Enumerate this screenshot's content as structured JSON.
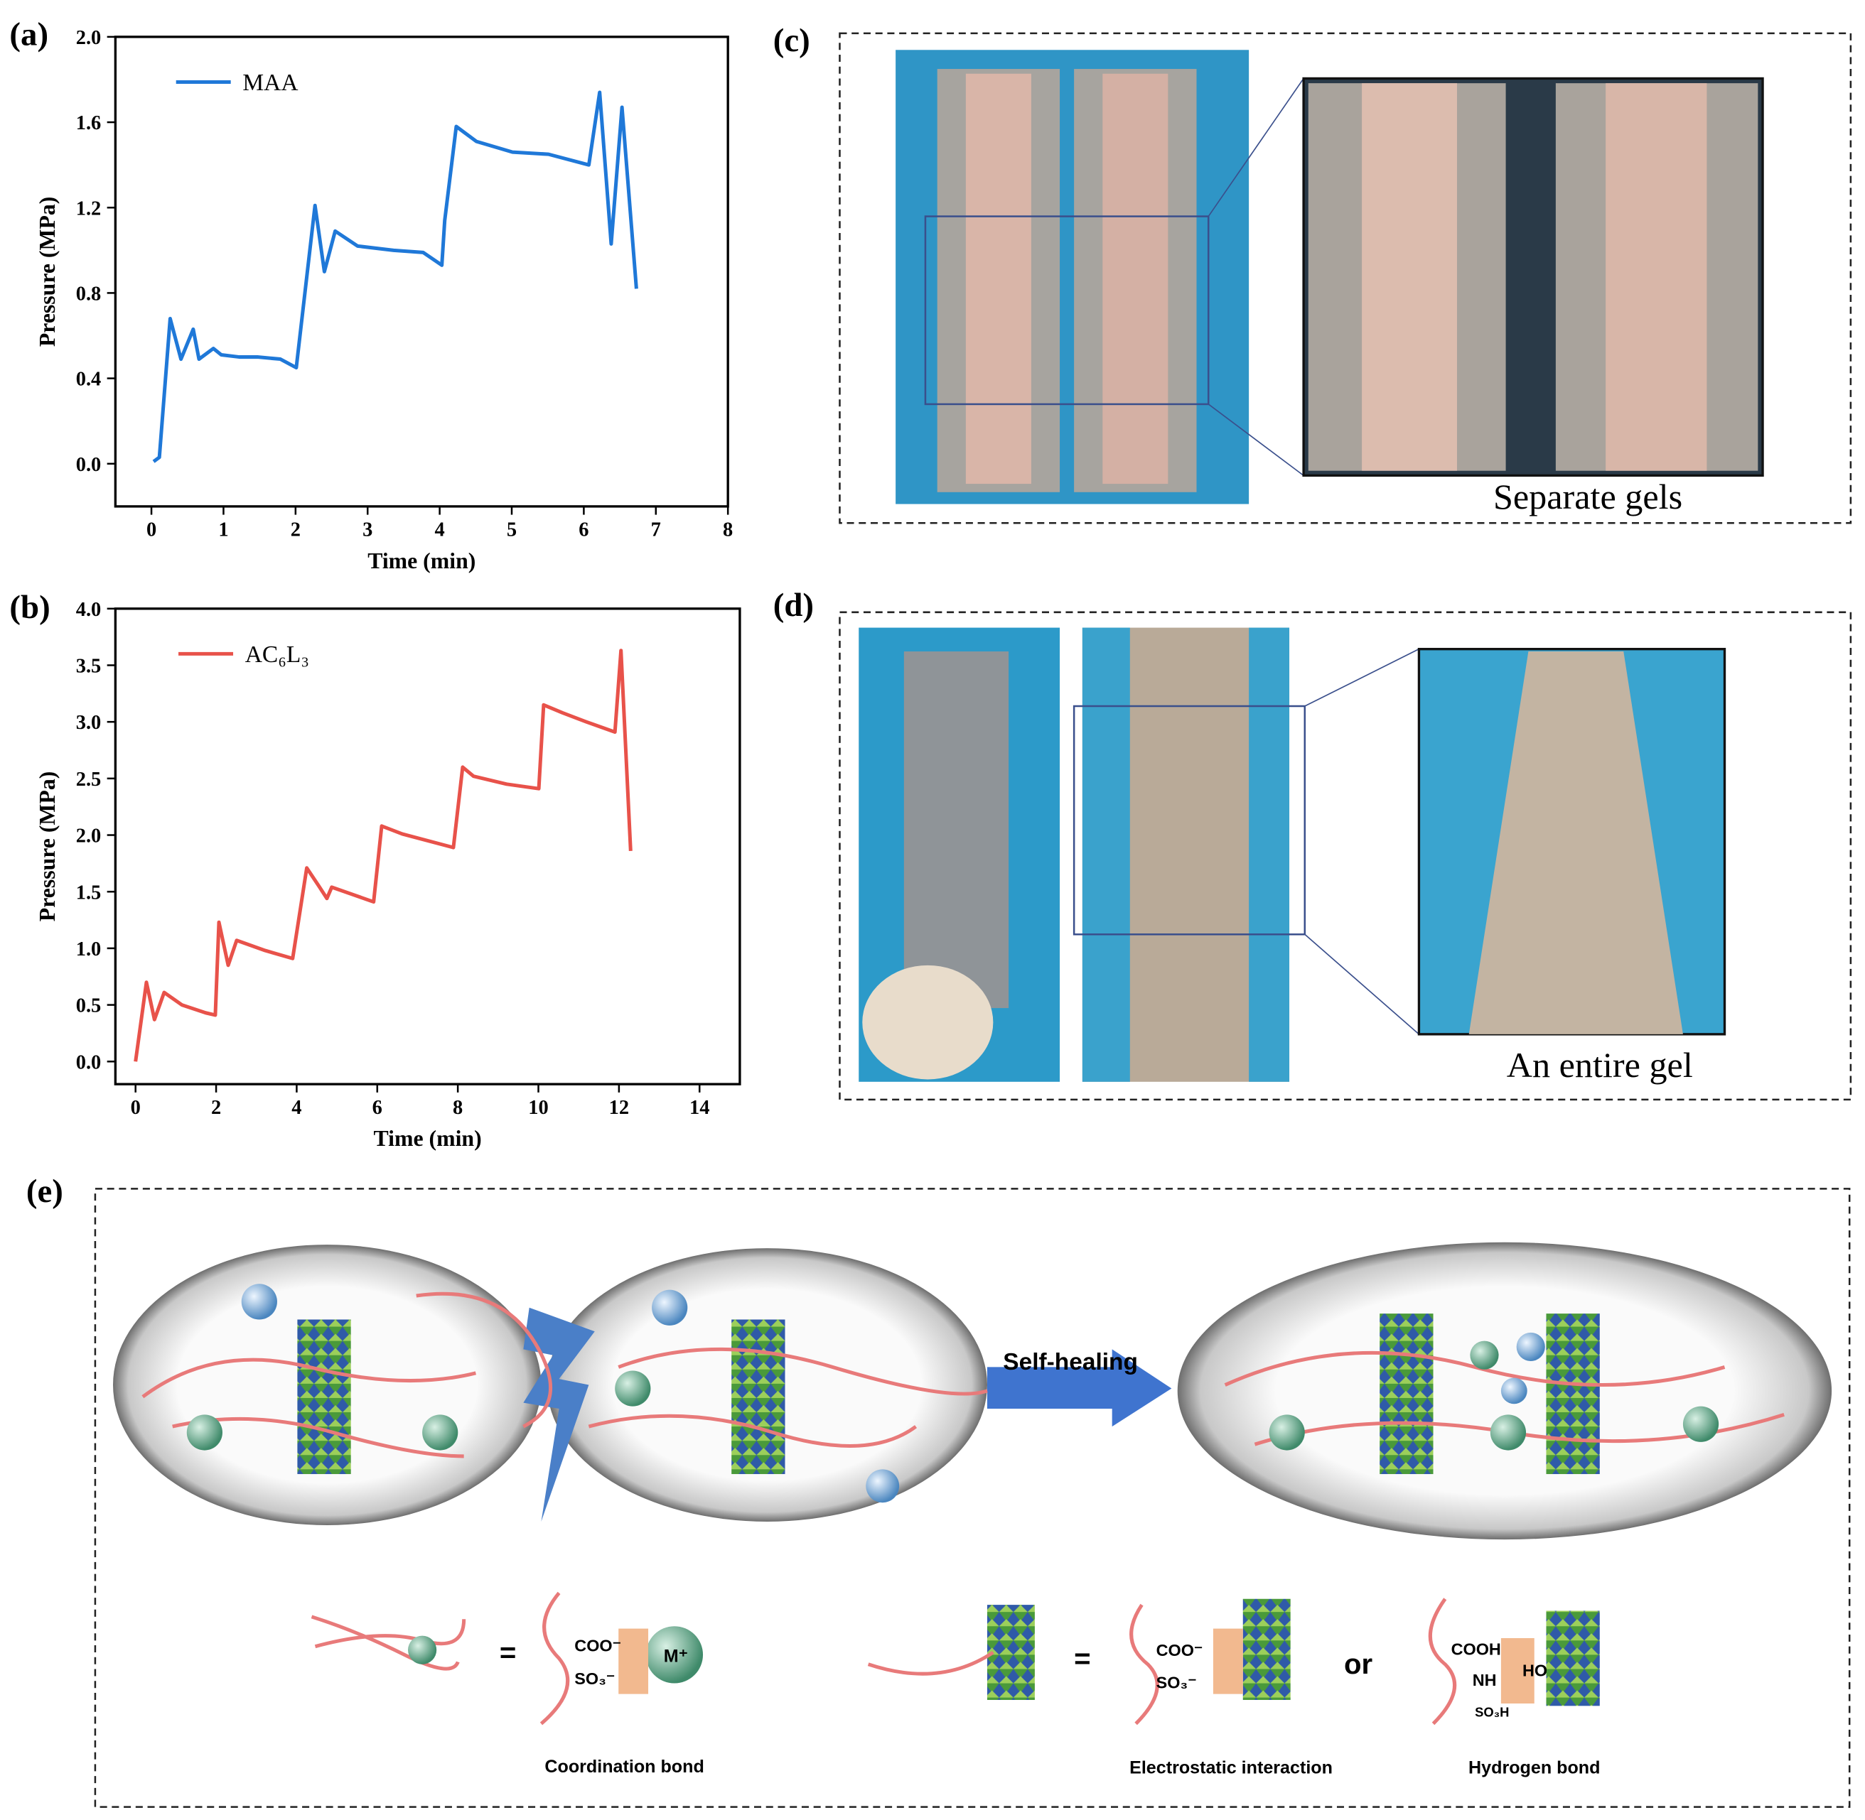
{
  "chart_data": [
    {
      "type": "line",
      "x_label": "Time (min)",
      "y_label": "Pressure (MPa)",
      "x": [
        0.03,
        0.11,
        0.26,
        0.41,
        0.58,
        0.66,
        0.86,
        0.97,
        1.22,
        1.47,
        1.79,
        2.01,
        2.27,
        2.4,
        2.55,
        2.86,
        3.36,
        3.77,
        4.03,
        4.07,
        4.23,
        4.51,
        5.01,
        5.51,
        6.07,
        6.22,
        6.38,
        6.53,
        6.73
      ],
      "series": [
        {
          "name": "MAA",
          "color": "#1f78d8",
          "values": [
            0.01,
            0.03,
            0.68,
            0.49,
            0.63,
            0.49,
            0.54,
            0.51,
            0.5,
            0.5,
            0.49,
            0.45,
            1.21,
            0.9,
            1.09,
            1.02,
            1.0,
            0.99,
            0.93,
            1.14,
            1.58,
            1.51,
            1.46,
            1.45,
            1.4,
            1.74,
            1.03,
            1.67,
            0.82
          ]
        }
      ],
      "xlim": [
        -0.5,
        8
      ],
      "xticks": [
        0,
        1,
        2,
        3,
        4,
        5,
        6,
        7,
        8
      ],
      "ylim": [
        -0.2,
        2.0
      ],
      "yticks": [
        {
          "value": 0,
          "label": "0.0"
        },
        0.4,
        0.8,
        1.2,
        1.6,
        {
          "value": 2,
          "label": "2.0"
        }
      ]
    },
    {
      "type": "line",
      "x_label": "Time (min)",
      "y_label": "Pressure (MPa)",
      "x": [
        0,
        0.27,
        0.47,
        0.71,
        1.15,
        1.74,
        1.98,
        2.07,
        2.3,
        2.51,
        3.22,
        3.9,
        4.25,
        4.55,
        4.75,
        4.87,
        5.43,
        5.91,
        6.11,
        6.62,
        7.89,
        8.12,
        8.39,
        9.21,
        10.01,
        10.13,
        10.6,
        11.19,
        11.9,
        12.05,
        12.29
      ],
      "series": [
        {
          "name": "AC₆L₃",
          "color": "#e8524a",
          "values": [
            0,
            0.7,
            0.37,
            0.61,
            0.5,
            0.43,
            0.41,
            1.23,
            0.85,
            1.07,
            0.98,
            0.91,
            1.71,
            1.55,
            1.44,
            1.54,
            1.47,
            1.41,
            2.08,
            2.01,
            1.89,
            2.6,
            2.52,
            2.45,
            2.41,
            3.15,
            3.08,
            3.0,
            2.91,
            3.63,
            1.86
          ]
        }
      ],
      "xlim": [
        -0.5,
        15
      ],
      "xticks": [
        0,
        2,
        4,
        6,
        8,
        10,
        12,
        14
      ],
      "ylim": [
        -0.2,
        4.0
      ],
      "yticks": [
        {
          "value": 0,
          "label": "0.0"
        },
        0.5,
        {
          "value": 1,
          "label": "1.0"
        },
        1.5,
        {
          "value": 2,
          "label": "2.0"
        },
        2.5,
        {
          "value": 3,
          "label": "3.0"
        },
        3.5,
        {
          "value": 4,
          "label": "4.0"
        }
      ]
    }
  ],
  "panel_labels": [
    "(a)",
    "(b)",
    "(c)",
    "(d)",
    "(e)"
  ],
  "photos": {
    "c_caption": "Separate gels",
    "d_caption": "An entire gel"
  },
  "schematic": {
    "arrow_label": "Self-healing",
    "equals": "=",
    "or": "or",
    "coo": "COO⁻",
    "so3": "SO₃⁻",
    "metal": "M⁺",
    "cooh": "COOH",
    "nh": "NH",
    "so3h": "SO₃H",
    "ho": "HO",
    "coordination": "Coordination bond",
    "electrostatic": "Electrostatic interaction",
    "hydrogen": "Hydrogen bond"
  }
}
